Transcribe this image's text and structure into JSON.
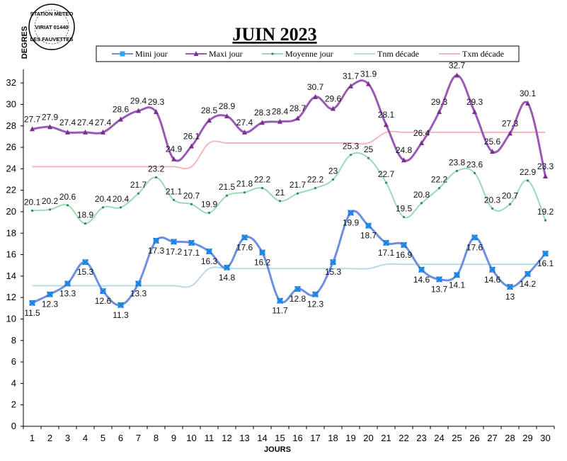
{
  "chart_data": {
    "type": "line",
    "title": "JUIN 2023",
    "xlabel": "JOURS",
    "ylabel": "DEGRES",
    "ylim": [
      0,
      33
    ],
    "yticks": [
      0,
      2,
      4,
      6,
      8,
      10,
      12,
      14,
      16,
      18,
      20,
      22,
      24,
      26,
      28,
      30,
      32
    ],
    "x": [
      1,
      2,
      3,
      4,
      5,
      6,
      7,
      8,
      9,
      10,
      11,
      12,
      13,
      14,
      15,
      16,
      17,
      18,
      19,
      20,
      21,
      22,
      23,
      24,
      25,
      26,
      27,
      28,
      29,
      30
    ],
    "grid": false,
    "legend_position": "top",
    "series": [
      {
        "name": "Mini jour",
        "color": "#6e8fe0",
        "marker": "#22aaff",
        "style": "mini",
        "values": [
          11.5,
          12.3,
          13.3,
          15.3,
          12.6,
          11.3,
          13.3,
          17.3,
          17.2,
          17.1,
          16.3,
          14.8,
          17.6,
          16.2,
          11.7,
          12.8,
          12.3,
          15.3,
          19.9,
          18.7,
          17.1,
          16.9,
          14.6,
          13.7,
          14.1,
          17.6,
          14.6,
          13,
          14.2,
          16.1
        ]
      },
      {
        "name": "Maxi jour",
        "color": "#9b59b6",
        "marker": "#7a2e8f",
        "style": "maxi",
        "values": [
          27.7,
          27.9,
          27.4,
          27.4,
          27.4,
          28.6,
          29.4,
          29.3,
          24.9,
          26.1,
          28.5,
          28.9,
          27.4,
          28.3,
          28.4,
          28.7,
          30.7,
          29.6,
          31.7,
          31.9,
          28.1,
          24.8,
          26.4,
          29.3,
          32.7,
          29.3,
          25.6,
          27.3,
          30.1,
          23.3
        ]
      },
      {
        "name": "Moyenne jour",
        "color": "#9ed9b6",
        "marker": "#2e8b57",
        "style": "moy",
        "values": [
          20.1,
          20.2,
          20.6,
          18.9,
          20.4,
          20.4,
          21.7,
          23.2,
          21.1,
          20.7,
          19.9,
          21.5,
          21.8,
          22.2,
          21,
          21.7,
          22.2,
          23,
          25.3,
          25,
          22.7,
          19.5,
          20.8,
          22.2,
          23.8,
          23.6,
          20.3,
          20.7,
          22.9,
          19.2
        ]
      },
      {
        "name": "Tnm décade",
        "color": "#b8dce6",
        "style": "flat",
        "values": [
          13.1,
          13.1,
          13.1,
          13.1,
          13.1,
          13.1,
          13.1,
          13.1,
          13.1,
          13.1,
          14.7,
          14.7,
          14.7,
          14.7,
          14.7,
          14.7,
          14.7,
          14.7,
          14.7,
          14.7,
          15.1,
          15.1,
          15.1,
          15.1,
          15.1,
          15.1,
          15.1,
          15.1,
          15.1,
          15.1
        ]
      },
      {
        "name": "Txm décade",
        "color": "#f4b8b8",
        "style": "flat",
        "values": [
          24.2,
          24.2,
          24.2,
          24.2,
          24.2,
          24.2,
          24.2,
          24.2,
          24.2,
          24.2,
          26.4,
          26.4,
          26.4,
          26.4,
          26.4,
          26.4,
          26.4,
          26.4,
          26.4,
          26.4,
          27.4,
          27.4,
          27.4,
          27.4,
          27.4,
          27.4,
          27.4,
          27.4,
          27.4,
          27.4
        ]
      }
    ],
    "data_labels": {
      "mini": [
        "11.5",
        "12.3",
        "13.3",
        "15.3",
        "12.6",
        "11.3",
        "13.3",
        "17.3",
        "17.2",
        "17.1",
        "16.3",
        "14.8",
        "17.6",
        "16.2",
        "11.7",
        "12.8",
        "12.3",
        "15.3",
        "19.9",
        "18.7",
        "17.1",
        "16.9",
        "14.6",
        "13.7",
        "14.1",
        "17.6",
        "14.6",
        "13",
        "14.2",
        "16.1"
      ],
      "maxi": [
        "27.7",
        "27.9",
        "27.4",
        "27.4",
        "27.4",
        "28.6",
        "29.4",
        "29.3",
        "24.9",
        "26.1",
        "28.5",
        "28.9",
        "27.4",
        "28.3",
        "28.4",
        "28.7",
        "30.7",
        "29.6",
        "31.7",
        "31.9",
        "28.1",
        "24.8",
        "26.4",
        "29.3",
        "32.7",
        "29.3",
        "25.6",
        "27.3",
        "30.1",
        "23.3"
      ],
      "moy": [
        "20.1",
        "20.2",
        "20.6",
        "18.9",
        "20.4",
        "20.4",
        "21.7",
        "23.2",
        "21.1",
        "20.7",
        "19.9",
        "21.5",
        "21.8",
        "22.2",
        "21",
        "21.7",
        "22.2",
        "23",
        "25.3",
        "25",
        "22.7",
        "19.5",
        "20.8",
        "22.2",
        "23.8",
        "23.6",
        "20.3",
        "20.7",
        "22.9",
        "19.2"
      ]
    }
  },
  "stamp": {
    "line1": "STATION METEO",
    "line2": "VIRIAT 01440",
    "line3": "LES FAUVETTES"
  }
}
